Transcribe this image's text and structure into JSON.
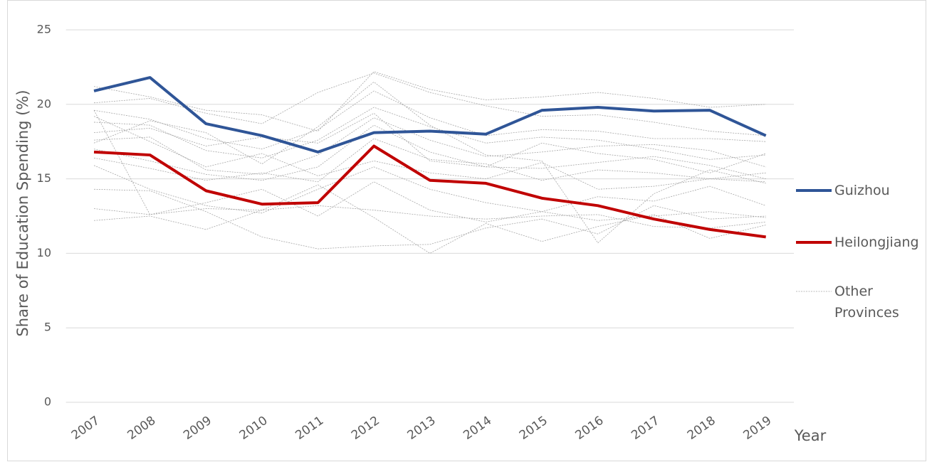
{
  "chart_data": {
    "type": "line",
    "y_label": "Share of Education Spending (%)",
    "x_label": "Year",
    "categories": [
      "2007",
      "2008",
      "2009",
      "2010",
      "2011",
      "2012",
      "2013",
      "2014",
      "2015",
      "2016",
      "2017",
      "2018",
      "2019"
    ],
    "ylim": [
      0,
      25
    ],
    "yticks": [
      0,
      5,
      10,
      15,
      20,
      25
    ],
    "grid": true,
    "series": [
      {
        "name": "Guizhou",
        "color": "#2f5597",
        "line_style": "solid",
        "values": [
          20.9,
          21.8,
          18.7,
          17.9,
          16.8,
          18.1,
          18.2,
          18.0,
          19.6,
          19.8,
          19.55,
          19.6,
          17.9
        ]
      },
      {
        "name": "Heilongjiang",
        "color": "#c00000",
        "line_style": "solid",
        "values": [
          16.8,
          16.6,
          14.2,
          13.3,
          13.4,
          17.2,
          14.9,
          14.7,
          13.7,
          13.2,
          12.3,
          11.6,
          11.1
        ]
      },
      {
        "name": "Other Provinces",
        "color": "#a6a6a6",
        "line_style": "dotted",
        "values": [
          21.2,
          20.5,
          19.6,
          19.3,
          18.2,
          22.2,
          21.0,
          20.3,
          20.5,
          20.8,
          20.4,
          19.8,
          20.0
        ]
      },
      {
        "color": "#a6a6a6",
        "line_style": "dotted",
        "values": [
          20.1,
          20.4,
          19.4,
          18.7,
          20.8,
          22.1,
          20.8,
          19.9,
          19.2,
          19.3,
          18.8,
          18.2,
          17.9
        ]
      },
      {
        "color": "#a6a6a6",
        "line_style": "dotted",
        "values": [
          19.6,
          19.0,
          17.7,
          17.0,
          18.3,
          20.9,
          19.1,
          17.9,
          18.3,
          18.2,
          17.7,
          17.7,
          17.5
        ]
      },
      {
        "color": "#a6a6a6",
        "line_style": "dotted",
        "values": [
          18.8,
          18.6,
          16.9,
          16.4,
          17.6,
          19.8,
          18.5,
          17.4,
          17.8,
          17.6,
          17.0,
          16.3,
          16.6
        ]
      },
      {
        "color": "#a6a6a6",
        "line_style": "dotted",
        "values": [
          17.6,
          17.8,
          15.6,
          15.3,
          16.6,
          19.1,
          17.6,
          16.5,
          16.8,
          17.2,
          17.3,
          16.9,
          15.8
        ]
      },
      {
        "color": "#a6a6a6",
        "line_style": "dotted",
        "values": [
          17.0,
          16.2,
          15.3,
          14.9,
          15.8,
          18.6,
          16.8,
          15.8,
          15.7,
          16.1,
          16.5,
          15.9,
          15.0
        ]
      },
      {
        "color": "#a6a6a6",
        "line_style": "dotted",
        "values": [
          16.4,
          15.7,
          14.9,
          15.4,
          14.8,
          17.7,
          16.3,
          16.0,
          14.9,
          15.6,
          15.4,
          15.0,
          14.8
        ]
      },
      {
        "color": "#a6a6a6",
        "line_style": "dotted",
        "values": [
          19.2,
          17.5,
          15.8,
          16.7,
          15.2,
          16.2,
          15.4,
          15.0,
          16.1,
          14.3,
          14.5,
          15.0,
          15.4
        ]
      },
      {
        "color": "#a6a6a6",
        "line_style": "dotted",
        "values": [
          15.9,
          14.3,
          13.2,
          12.7,
          14.3,
          15.8,
          14.3,
          13.4,
          12.8,
          13.8,
          13.5,
          14.5,
          13.2
        ]
      },
      {
        "color": "#a6a6a6",
        "line_style": "dotted",
        "values": [
          14.3,
          14.2,
          12.8,
          11.1,
          10.3,
          10.5,
          10.6,
          11.7,
          12.3,
          11.3,
          13.2,
          12.3,
          12.5
        ]
      },
      {
        "color": "#a6a6a6",
        "line_style": "dotted",
        "values": [
          13.0,
          12.6,
          13.0,
          12.9,
          13.2,
          12.9,
          12.5,
          12.3,
          12.5,
          12.6,
          11.8,
          11.7,
          12.1
        ]
      },
      {
        "color": "#a6a6a6",
        "line_style": "dotted",
        "values": [
          12.2,
          12.5,
          11.6,
          12.9,
          14.6,
          12.4,
          10.0,
          12.0,
          10.8,
          11.8,
          12.6,
          11.0,
          11.9
        ]
      },
      {
        "color": "#a6a6a6",
        "line_style": "dotted",
        "values": [
          19.6,
          12.6,
          13.4,
          14.3,
          12.5,
          14.8,
          12.9,
          12.1,
          12.8,
          12.2,
          12.5,
          12.8,
          12.4
        ]
      },
      {
        "color": "#a6a6a6",
        "line_style": "dotted",
        "values": [
          17.4,
          18.9,
          18.1,
          16.0,
          18.5,
          21.5,
          18.6,
          16.6,
          16.2,
          10.7,
          14.0,
          15.6,
          14.7
        ]
      },
      {
        "color": "#a6a6a6",
        "line_style": "dotted",
        "values": [
          18.1,
          18.4,
          17.2,
          17.8,
          17.4,
          19.4,
          16.2,
          15.8,
          17.4,
          16.7,
          16.3,
          15.4,
          16.7
        ]
      }
    ]
  }
}
